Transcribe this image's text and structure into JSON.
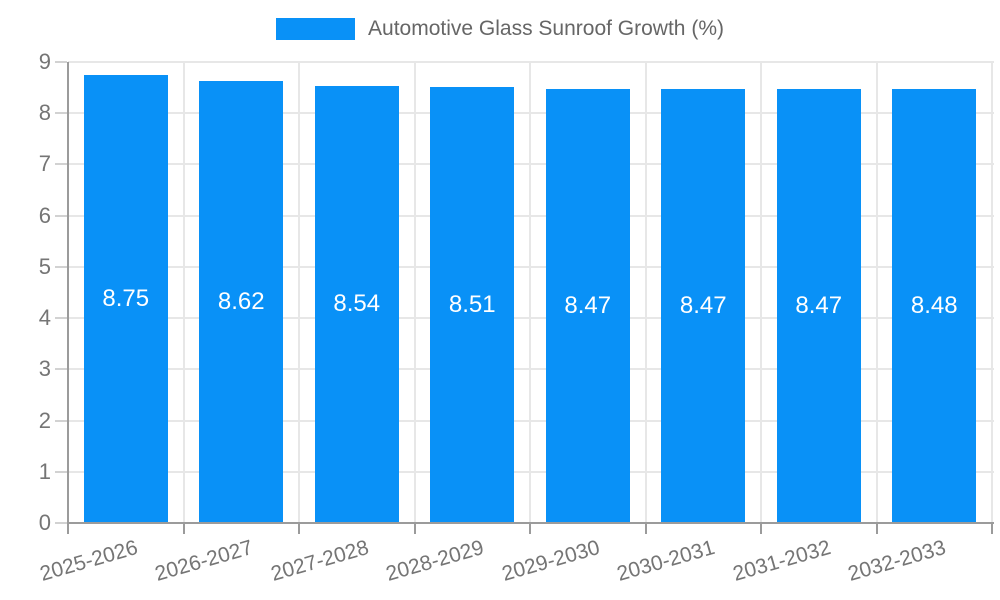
{
  "chart_data": {
    "type": "bar",
    "title": "",
    "legend_label": "Automotive Glass Sunroof Growth (%)",
    "legend_position": "top-center",
    "categories": [
      "2025-2026",
      "2026-2027",
      "2027-2028",
      "2028-2029",
      "2029-2030",
      "2030-2031",
      "2031-2032",
      "2032-2033"
    ],
    "values": [
      8.75,
      8.62,
      8.54,
      8.51,
      8.47,
      8.47,
      8.47,
      8.48
    ],
    "value_labels": [
      "8.75",
      "8.62",
      "8.54",
      "8.51",
      "8.47",
      "8.47",
      "8.47",
      "8.48"
    ],
    "xlabel": "",
    "ylabel": "",
    "ylim": [
      0,
      9
    ],
    "yticks": [
      0,
      1,
      2,
      3,
      4,
      5,
      6,
      7,
      8,
      9
    ],
    "grid": true,
    "bar_color": "#0991f7",
    "value_label_color": "#ffffff",
    "axis_color": "#9b9b9b",
    "gridline_color": "#e7e7e7",
    "tick_label_color": "#757575"
  }
}
